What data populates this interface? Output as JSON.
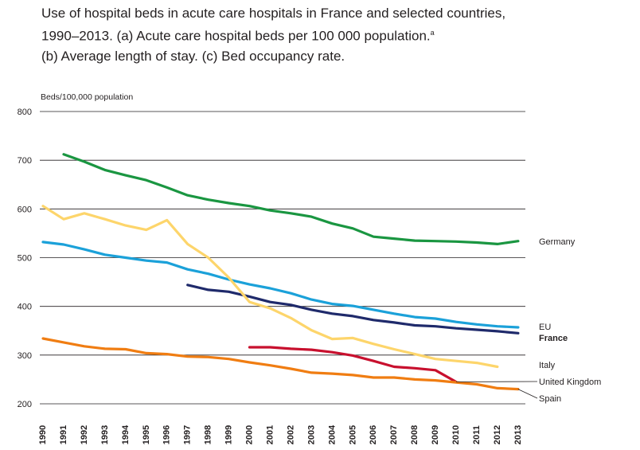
{
  "title": {
    "line1": "Use of hospital beds in acute care hospitals in France and selected countries,",
    "line2": "1990–2013. (a) Acute care hospital beds per 100 000 population.",
    "superscript": "a",
    "line3": "(b) Average length of stay. (c) Bed occupancy rate."
  },
  "chart_data": {
    "type": "line",
    "ylabel": "Beds/100,000 population",
    "ylim": [
      200,
      800
    ],
    "yticks": [
      200,
      300,
      400,
      500,
      600,
      700,
      800
    ],
    "grid": true,
    "legend": "direct labels at line ends (right)",
    "categories": [
      "1990",
      "1991",
      "1992",
      "1993",
      "1994",
      "1995",
      "1996",
      "1997",
      "1998",
      "1999",
      "2000",
      "2001",
      "2002",
      "2003",
      "2004",
      "2005",
      "2006",
      "2007",
      "2008",
      "2009",
      "2010",
      "2011",
      "2012",
      "2013"
    ],
    "series": [
      {
        "name": "Germany",
        "color": "#1a9641",
        "bold": false,
        "values": [
          null,
          712,
          697,
          680,
          669,
          659,
          644,
          628,
          619,
          612,
          606,
          597,
          591,
          584,
          570,
          560,
          543,
          539,
          535,
          534,
          533,
          531,
          528,
          534
        ]
      },
      {
        "name": "EU",
        "color": "#1ba1d9",
        "bold": false,
        "values": [
          532,
          527,
          517,
          506,
          500,
          494,
          490,
          476,
          467,
          455,
          445,
          437,
          427,
          414,
          405,
          401,
          393,
          385,
          378,
          375,
          368,
          363,
          359,
          357
        ]
      },
      {
        "name": "France",
        "color": "#1f2a6b",
        "bold": true,
        "values": [
          null,
          null,
          null,
          null,
          null,
          null,
          null,
          444,
          434,
          430,
          420,
          409,
          403,
          393,
          385,
          380,
          372,
          367,
          361,
          359,
          355,
          352,
          349,
          345
        ]
      },
      {
        "name": "Italy",
        "color": "#fdd56b",
        "bold": false,
        "values": [
          606,
          579,
          591,
          579,
          566,
          557,
          577,
          528,
          500,
          459,
          409,
          396,
          376,
          351,
          333,
          335,
          323,
          312,
          302,
          292,
          288,
          284,
          276,
          null
        ]
      },
      {
        "name": "United Kingdom",
        "color": "#c8102e",
        "bold": false,
        "values": [
          null,
          null,
          null,
          null,
          null,
          null,
          null,
          null,
          null,
          null,
          316,
          316,
          313,
          311,
          306,
          299,
          288,
          276,
          273,
          269,
          245,
          null,
          null,
          null
        ]
      },
      {
        "name": "Spain",
        "color": "#f07d12",
        "bold": false,
        "values": [
          334,
          326,
          318,
          313,
          312,
          304,
          302,
          297,
          296,
          292,
          285,
          279,
          272,
          264,
          262,
          259,
          254,
          254,
          250,
          248,
          244,
          240,
          232,
          230
        ]
      }
    ]
  }
}
